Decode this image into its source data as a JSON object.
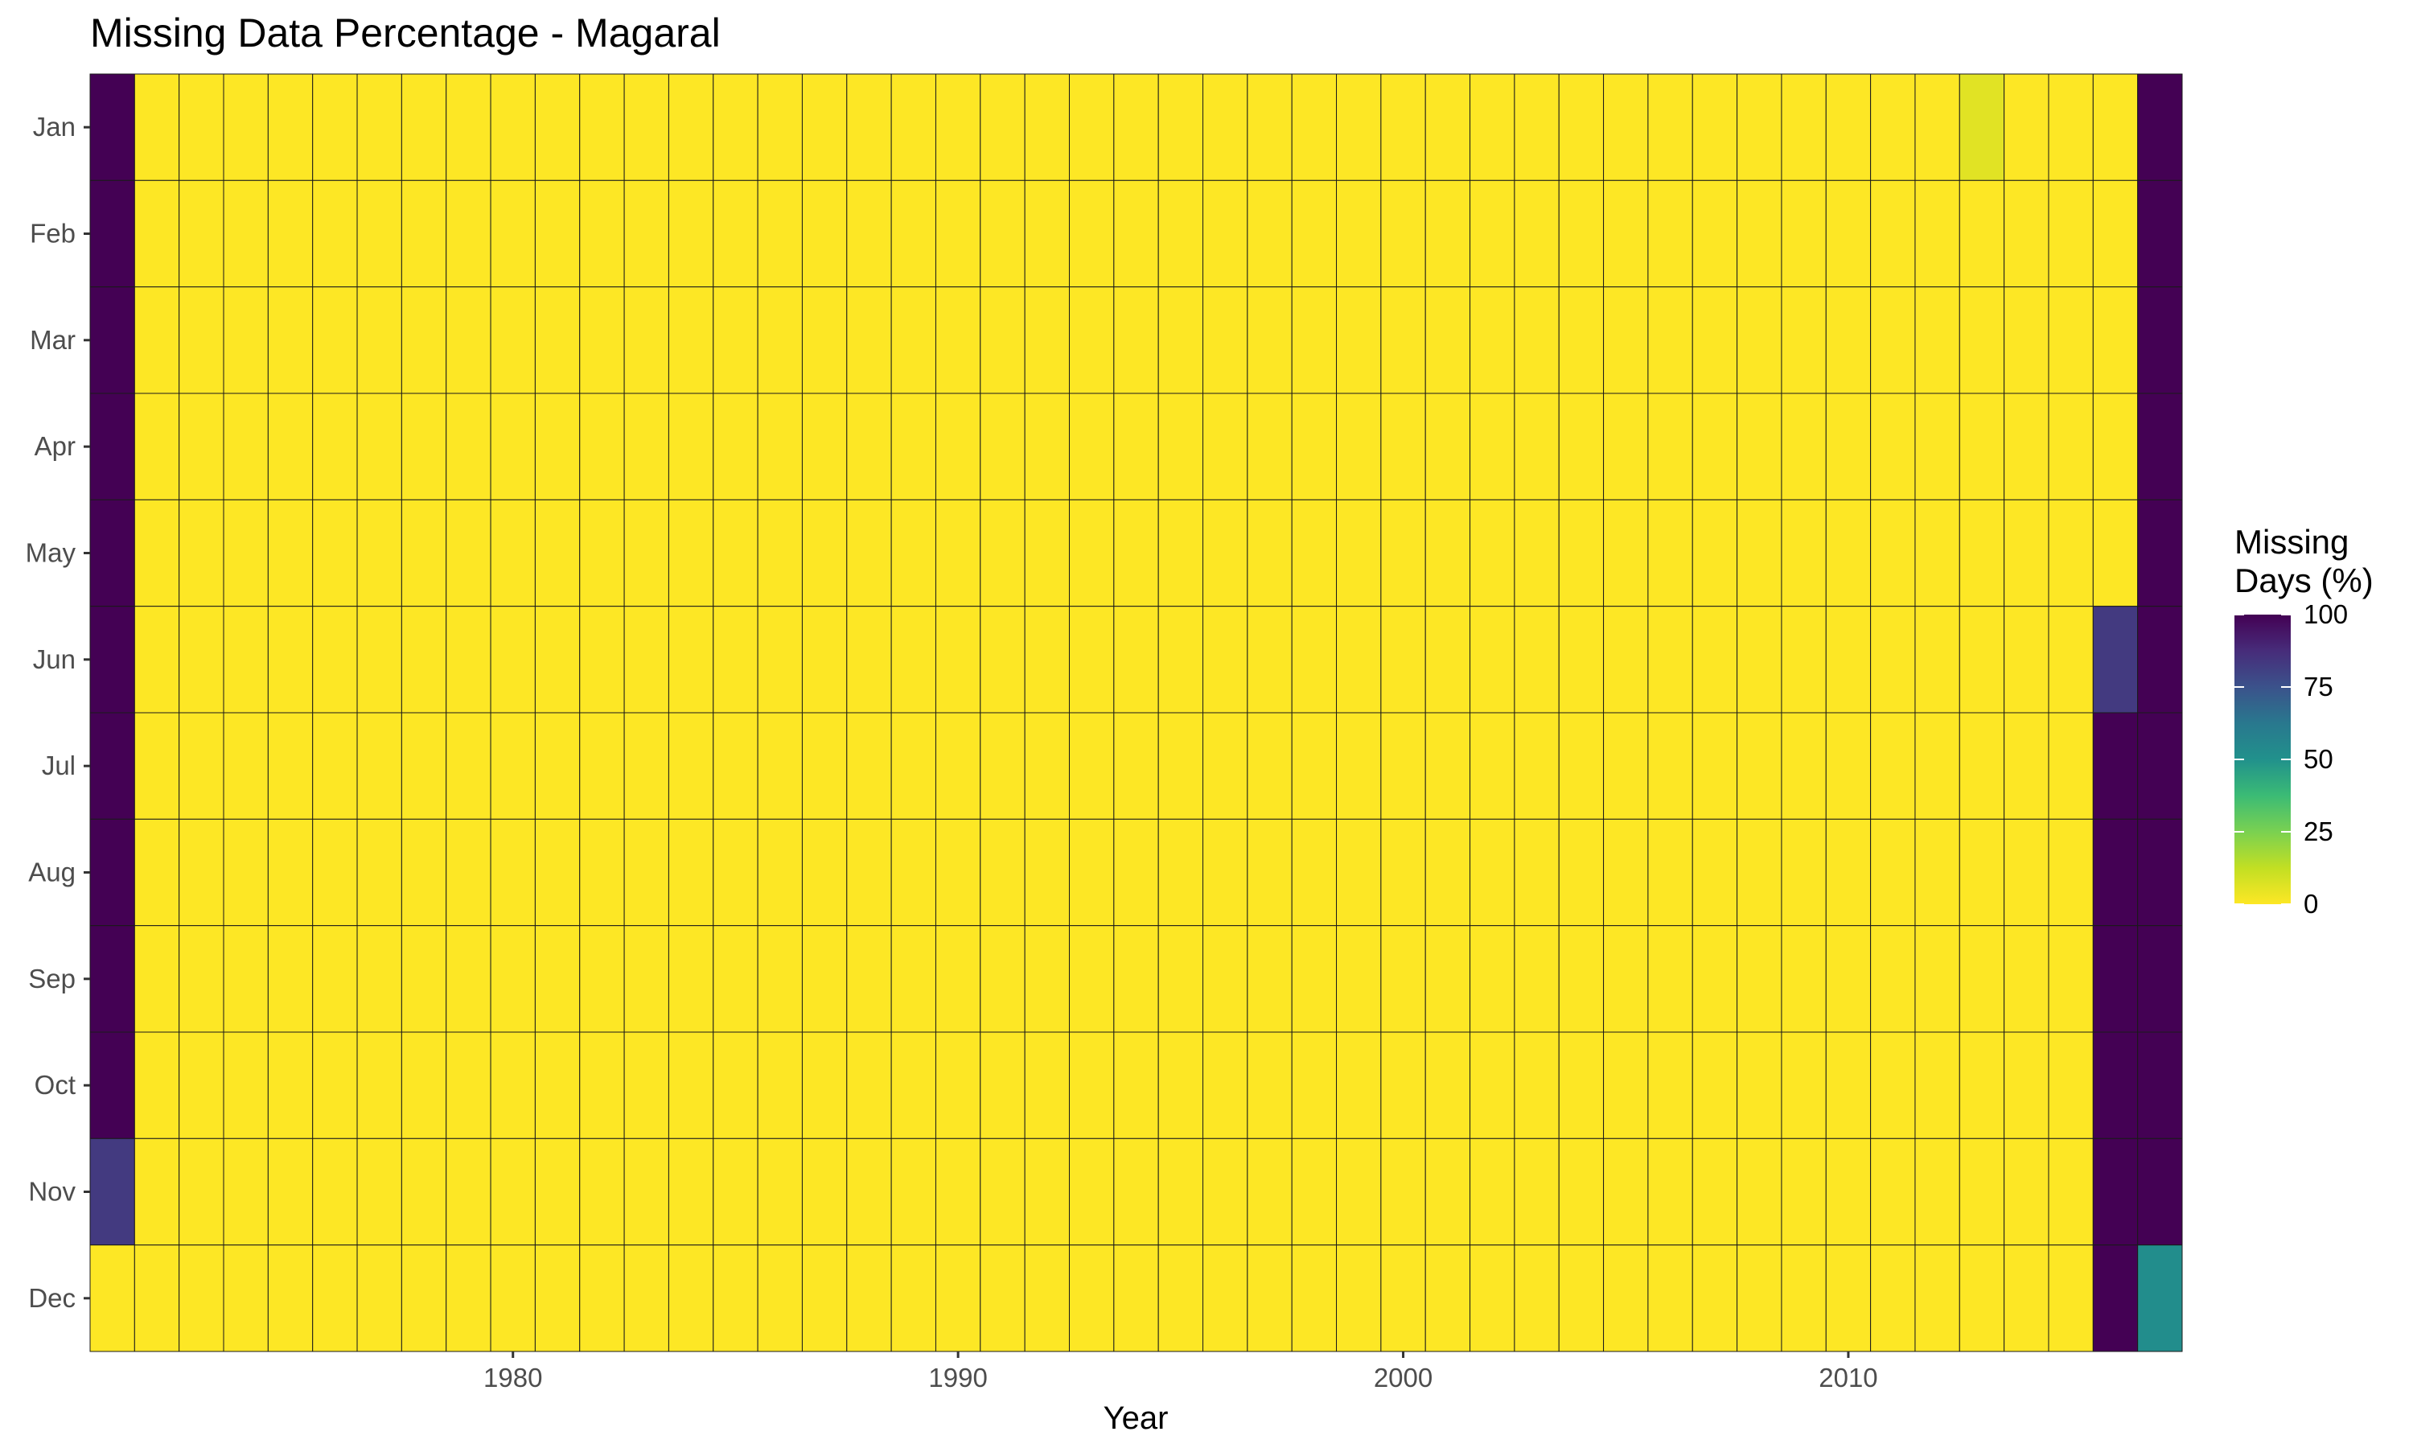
{
  "chart_data": {
    "type": "heatmap",
    "title": "Missing Data Percentage - Magaral",
    "xlabel": "Year",
    "ylabel": "",
    "x_start_year": 1971,
    "x_end_year": 2017,
    "x_ticks": [
      1980,
      1990,
      2000,
      2010
    ],
    "months": [
      "Jan",
      "Feb",
      "Mar",
      "Apr",
      "May",
      "Jun",
      "Jul",
      "Aug",
      "Sep",
      "Oct",
      "Nov",
      "Dec"
    ],
    "legend": {
      "title_line1": "Missing",
      "title_line2": "Days (%)",
      "min": 0,
      "max": 100,
      "ticks": [
        100,
        75,
        50,
        25,
        0
      ],
      "colormap": "viridis (reversed: 0 = yellow, 100 = purple)"
    },
    "default_value": 0,
    "non_default_cells": [
      {
        "year": 1971,
        "month": "Jan",
        "value": 100
      },
      {
        "year": 1971,
        "month": "Feb",
        "value": 100
      },
      {
        "year": 1971,
        "month": "Mar",
        "value": 100
      },
      {
        "year": 1971,
        "month": "Apr",
        "value": 100
      },
      {
        "year": 1971,
        "month": "May",
        "value": 100
      },
      {
        "year": 1971,
        "month": "Jun",
        "value": 100
      },
      {
        "year": 1971,
        "month": "Jul",
        "value": 100
      },
      {
        "year": 1971,
        "month": "Aug",
        "value": 100
      },
      {
        "year": 1971,
        "month": "Sep",
        "value": 100
      },
      {
        "year": 1971,
        "month": "Oct",
        "value": 100
      },
      {
        "year": 1971,
        "month": "Nov",
        "value": 83
      },
      {
        "year": 2013,
        "month": "Jan",
        "value": 6
      },
      {
        "year": 2016,
        "month": "Jun",
        "value": 83
      },
      {
        "year": 2016,
        "month": "Jul",
        "value": 100
      },
      {
        "year": 2016,
        "month": "Aug",
        "value": 100
      },
      {
        "year": 2016,
        "month": "Sep",
        "value": 100
      },
      {
        "year": 2016,
        "month": "Oct",
        "value": 100
      },
      {
        "year": 2016,
        "month": "Nov",
        "value": 100
      },
      {
        "year": 2016,
        "month": "Dec",
        "value": 100
      },
      {
        "year": 2017,
        "month": "Jan",
        "value": 100
      },
      {
        "year": 2017,
        "month": "Feb",
        "value": 100
      },
      {
        "year": 2017,
        "month": "Mar",
        "value": 100
      },
      {
        "year": 2017,
        "month": "Apr",
        "value": 100
      },
      {
        "year": 2017,
        "month": "May",
        "value": 100
      },
      {
        "year": 2017,
        "month": "Jun",
        "value": 100
      },
      {
        "year": 2017,
        "month": "Jul",
        "value": 100
      },
      {
        "year": 2017,
        "month": "Aug",
        "value": 100
      },
      {
        "year": 2017,
        "month": "Sep",
        "value": 100
      },
      {
        "year": 2017,
        "month": "Oct",
        "value": 100
      },
      {
        "year": 2017,
        "month": "Nov",
        "value": 100
      },
      {
        "year": 2017,
        "month": "Dec",
        "value": 52
      }
    ]
  }
}
